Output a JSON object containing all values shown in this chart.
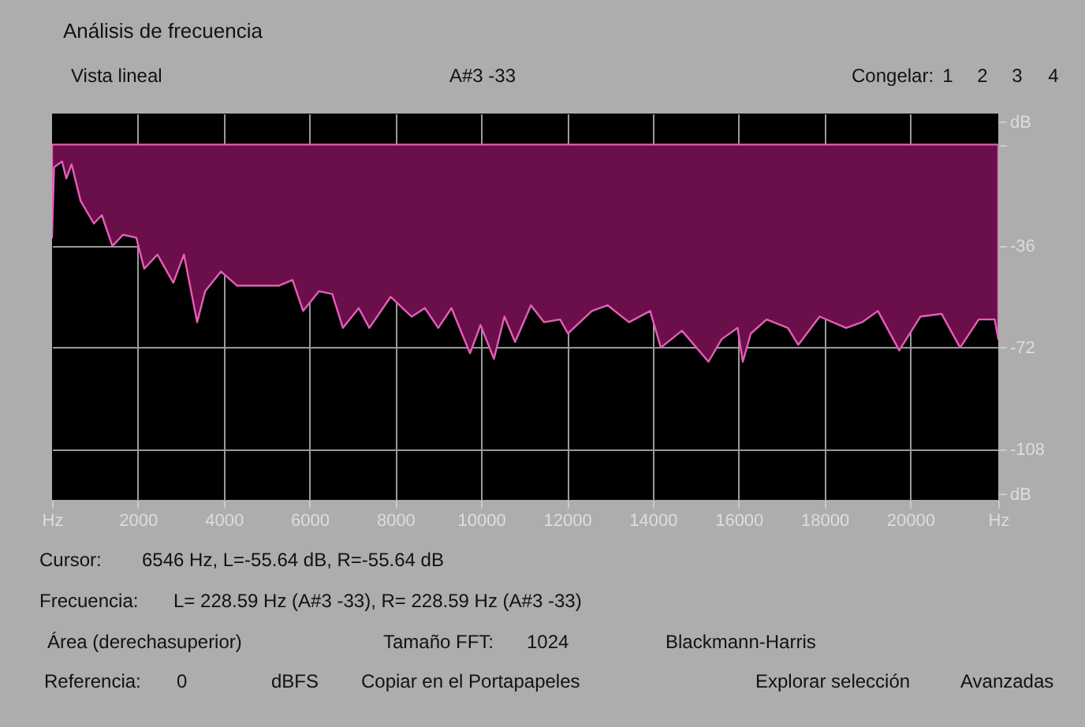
{
  "chart_data": {
    "type": "area",
    "title": "Análisis de frecuencia",
    "annotations": [
      "Vista lineal",
      "A#3 -33",
      "Congelar:",
      "1",
      "2",
      "3",
      "4",
      "Cursor:",
      "6546 Hz, L=-55.64 dB, R=-55.64 dB",
      "Frecuencia:",
      "L= 228.59 Hz (A#3 -33), R= 228.59 Hz (A#3 -33)",
      "Área (derechasuperior)",
      "Tamaño FFT:",
      "1024",
      "Blackmann-Harris",
      "Referencia:",
      "0",
      "dBFS",
      "Copiar en el Portapapeles",
      "Explorar selección",
      "Avanzadas"
    ],
    "x": [
      0,
      48,
      233,
      333,
      455,
      666,
      975,
      1160,
      1407,
      1652,
      1963,
      2148,
      2456,
      2826,
      3074,
      3382,
      3567,
      3937,
      4308,
      4801,
      5295,
      5604,
      5852,
      6222,
      6530,
      6778,
      7148,
      7394,
      7890,
      8382,
      8690,
      9000,
      9308,
      9740,
      9986,
      10297,
      10542,
      10790,
      11160,
      11468,
      11838,
      12023,
      12579,
      12949,
      13445,
      13938,
      14186,
      14679,
      15297,
      15605,
      15975,
      16097,
      16283,
      16653,
      17147,
      17391,
      17887,
      18505,
      18875,
      19245,
      19742,
      20235,
      20728,
      21161,
      21594,
      21965,
      22050
    ],
    "series": [
      {
        "color": "#6b0f4a",
        "values": [
          -33,
          -8,
          -6,
          -12,
          -7,
          -20,
          -28,
          -25,
          -36,
          -32,
          -33,
          -44,
          -39,
          -49,
          -39,
          -63,
          -52,
          -45,
          -50,
          -50,
          -50,
          -48,
          -59,
          -52,
          -53,
          -65,
          -58,
          -65,
          -54,
          -61,
          -58,
          -65,
          -58,
          -74,
          -64,
          -76,
          -61,
          -70,
          -57,
          -63,
          -62,
          -67,
          -59,
          -57,
          -63,
          -59,
          -72,
          -66,
          -77,
          -69,
          -65,
          -77,
          -67,
          -62,
          -65,
          -71,
          -61,
          -65,
          -63,
          -59,
          -73,
          -61,
          -60,
          -72,
          -62,
          -62,
          -69
        ]
      }
    ],
    "xlim": [
      0,
      22050
    ],
    "xticks": [
      {
        "value": 0,
        "label": "Hz"
      },
      2000,
      4000,
      6000,
      8000,
      10000,
      12000,
      14000,
      16000,
      18000,
      20000,
      {
        "value": 22050,
        "label": "Hz"
      }
    ],
    "ylim": [
      -126,
      11
    ],
    "yticks": [
      {
        "value": 8,
        "label": "dB"
      },
      {
        "value": 0,
        "label": null
      },
      -36,
      -72,
      -108,
      {
        "value": -124,
        "label": "dB"
      }
    ],
    "grid": true
  }
}
